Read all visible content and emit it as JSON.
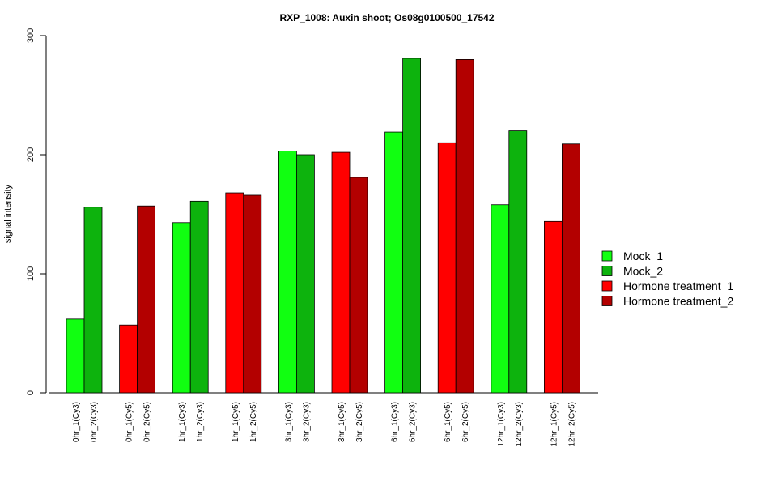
{
  "chart_data": {
    "type": "bar",
    "title": "RXP_1008: Auxin shoot; Os08g0100500_17542",
    "xlabel": "",
    "ylabel": "signal intensity",
    "ylim": [
      0,
      300
    ],
    "yticks": [
      0,
      100,
      200,
      300
    ],
    "grid": false,
    "legend_position": "right",
    "legend": [
      {
        "name": "Mock_1",
        "color": "#11ff11"
      },
      {
        "name": "Mock_2",
        "color": "#0db30d"
      },
      {
        "name": "Hormone treatment_1",
        "color": "#ff0000"
      },
      {
        "name": "Hormone treatment_2",
        "color": "#b30000"
      }
    ],
    "groups": [
      {
        "bars": [
          {
            "label": "0hr_1(Cy3)",
            "value": 62,
            "color": "#11ff11"
          },
          {
            "label": "0hr_2(Cy3)",
            "value": 156,
            "color": "#0db30d"
          }
        ]
      },
      {
        "bars": [
          {
            "label": "0hr_1(Cy5)",
            "value": 57,
            "color": "#ff0000"
          },
          {
            "label": "0hr_2(Cy5)",
            "value": 157,
            "color": "#b30000"
          }
        ]
      },
      {
        "bars": [
          {
            "label": "1hr_1(Cy3)",
            "value": 143,
            "color": "#11ff11"
          },
          {
            "label": "1hr_2(Cy3)",
            "value": 161,
            "color": "#0db30d"
          }
        ]
      },
      {
        "bars": [
          {
            "label": "1hr_1(Cy5)",
            "value": 168,
            "color": "#ff0000"
          },
          {
            "label": "1hr_2(Cy5)",
            "value": 166,
            "color": "#b30000"
          }
        ]
      },
      {
        "bars": [
          {
            "label": "3hr_1(Cy3)",
            "value": 203,
            "color": "#11ff11"
          },
          {
            "label": "3hr_2(Cy3)",
            "value": 200,
            "color": "#0db30d"
          }
        ]
      },
      {
        "bars": [
          {
            "label": "3hr_1(Cy5)",
            "value": 202,
            "color": "#ff0000"
          },
          {
            "label": "3hr_2(Cy5)",
            "value": 181,
            "color": "#b30000"
          }
        ]
      },
      {
        "bars": [
          {
            "label": "6hr_1(Cy3)",
            "value": 219,
            "color": "#11ff11"
          },
          {
            "label": "6hr_2(Cy3)",
            "value": 281,
            "color": "#0db30d"
          }
        ]
      },
      {
        "bars": [
          {
            "label": "6hr_1(Cy5)",
            "value": 210,
            "color": "#ff0000"
          },
          {
            "label": "6hr_2(Cy5)",
            "value": 280,
            "color": "#b30000"
          }
        ]
      },
      {
        "bars": [
          {
            "label": "12hr_1(Cy3)",
            "value": 158,
            "color": "#11ff11"
          },
          {
            "label": "12hr_2(Cy3)",
            "value": 220,
            "color": "#0db30d"
          }
        ]
      },
      {
        "bars": [
          {
            "label": "12hr_1(Cy5)",
            "value": 144,
            "color": "#ff0000"
          },
          {
            "label": "12hr_2(Cy5)",
            "value": 209,
            "color": "#b30000"
          }
        ]
      }
    ]
  }
}
